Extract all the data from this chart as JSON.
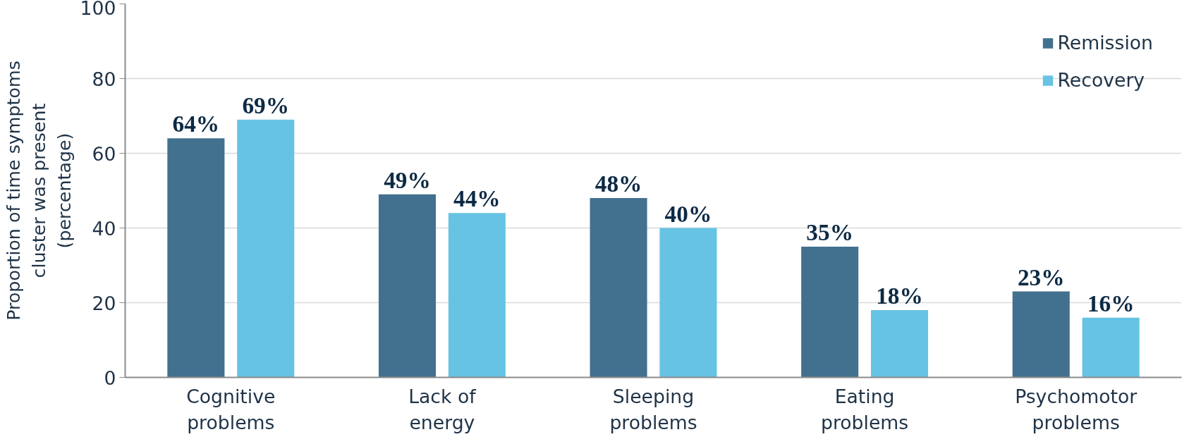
{
  "chart_data": {
    "type": "bar",
    "ylabel": "Proportion of time symptoms cluster was present (percentage)",
    "categories": [
      "Cognitive problems",
      "Lack of energy",
      "Sleeping problems",
      "Eating problems",
      "Psychomotor problems"
    ],
    "series": [
      {
        "name": "Remission",
        "color": "#42718f",
        "values": [
          64,
          49,
          48,
          35,
          23
        ],
        "value_labels": [
          "64%",
          "49%",
          "48%",
          "35%",
          "23%"
        ]
      },
      {
        "name": "Recovery",
        "color": "#67c3e3",
        "values": [
          69,
          44,
          40,
          18,
          16
        ],
        "value_labels": [
          "69%",
          "44%",
          "40%",
          "18%",
          "16%"
        ]
      }
    ],
    "ylim": [
      0,
      100
    ],
    "yticks": [
      0,
      20,
      40,
      60,
      80,
      100
    ],
    "grid": "y",
    "legend": "top right"
  }
}
